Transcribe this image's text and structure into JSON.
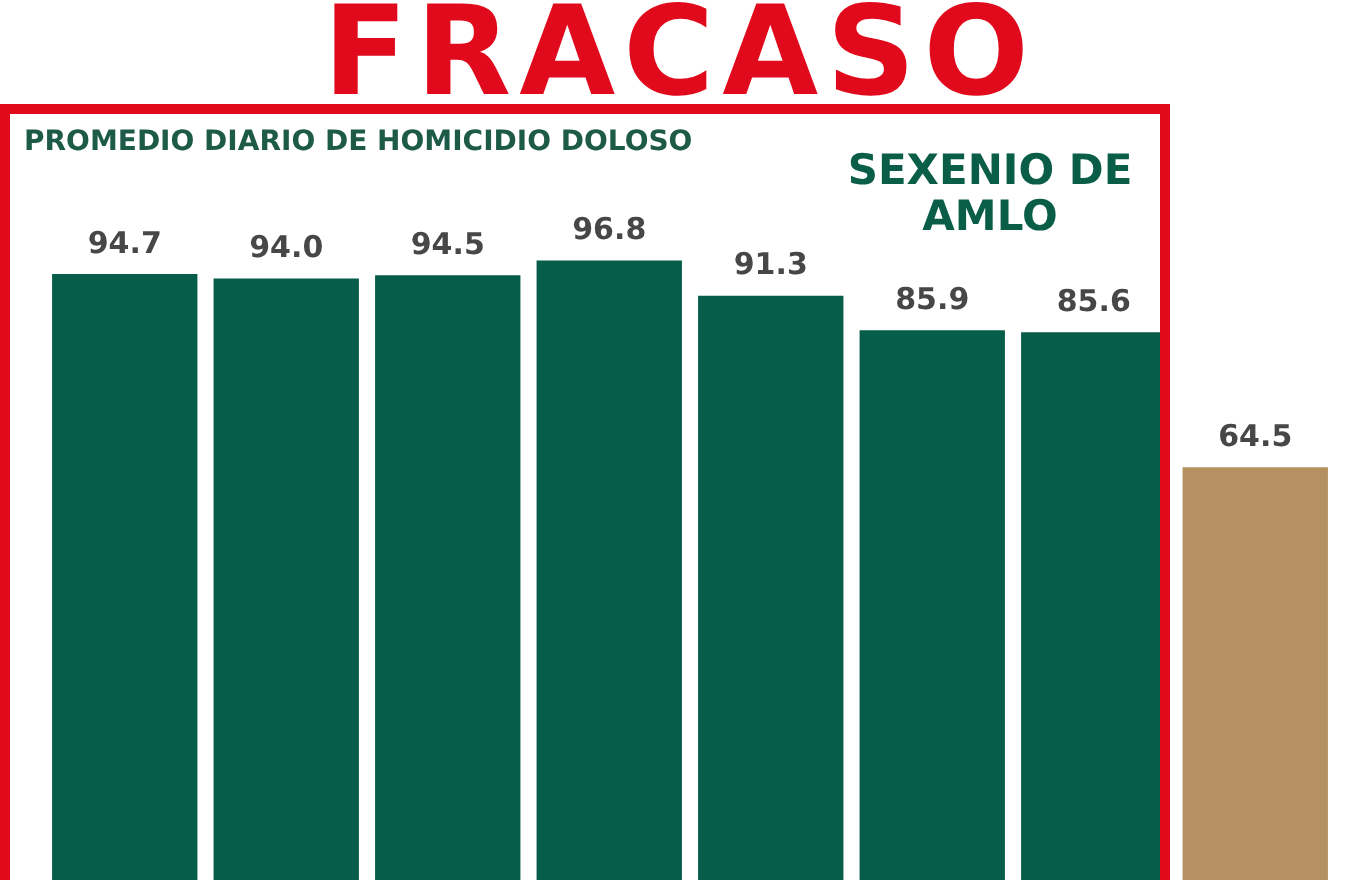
{
  "chart_data": {
    "type": "bar",
    "title": "FRACASO",
    "subtitle": "PROMEDIO DIARIO DE HOMICIDIO DOLOSO",
    "annotations": [
      "SEXENIO DE AMLO"
    ],
    "categories": [
      null,
      null,
      null,
      null,
      null,
      null,
      null,
      null
    ],
    "values": [
      94.7,
      94.0,
      94.5,
      96.8,
      91.3,
      85.9,
      85.6,
      64.5
    ],
    "colors": [
      "#065d4a",
      "#065d4a",
      "#065d4a",
      "#065d4a",
      "#065d4a",
      "#065d4a",
      "#065d4a",
      "#b59061"
    ],
    "value_labels": [
      "94.7",
      "94.0",
      "94.5",
      "96.8",
      "91.3",
      "85.9",
      "85.6",
      "64.5"
    ],
    "tick_labels": false
  }
}
